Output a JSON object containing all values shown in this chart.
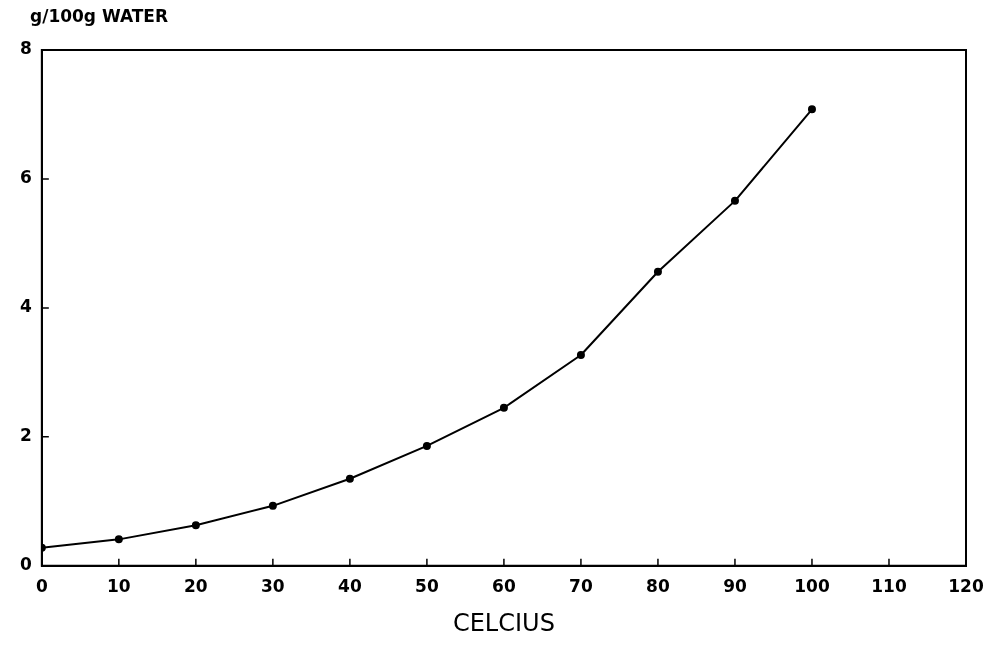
{
  "chart_data": {
    "type": "line",
    "ylabel": "g/100g WATER",
    "xlabel": "CELCIUS",
    "x": [
      0,
      10,
      20,
      30,
      40,
      50,
      60,
      70,
      80,
      90,
      100
    ],
    "series": [
      {
        "color": "#000000",
        "values": [
          0.28,
          0.41,
          0.63,
          0.93,
          1.35,
          1.86,
          2.45,
          3.27,
          4.56,
          5.66,
          7.08
        ]
      }
    ],
    "xlim": [
      0,
      120
    ],
    "xticks": [
      0,
      10,
      20,
      30,
      40,
      50,
      60,
      70,
      80,
      90,
      100,
      110,
      120
    ],
    "ylim": [
      0,
      8
    ],
    "yticks": [
      0,
      2,
      4,
      6,
      8
    ],
    "grid": false,
    "legend": false,
    "marker": "circle",
    "line_style": "solid"
  }
}
